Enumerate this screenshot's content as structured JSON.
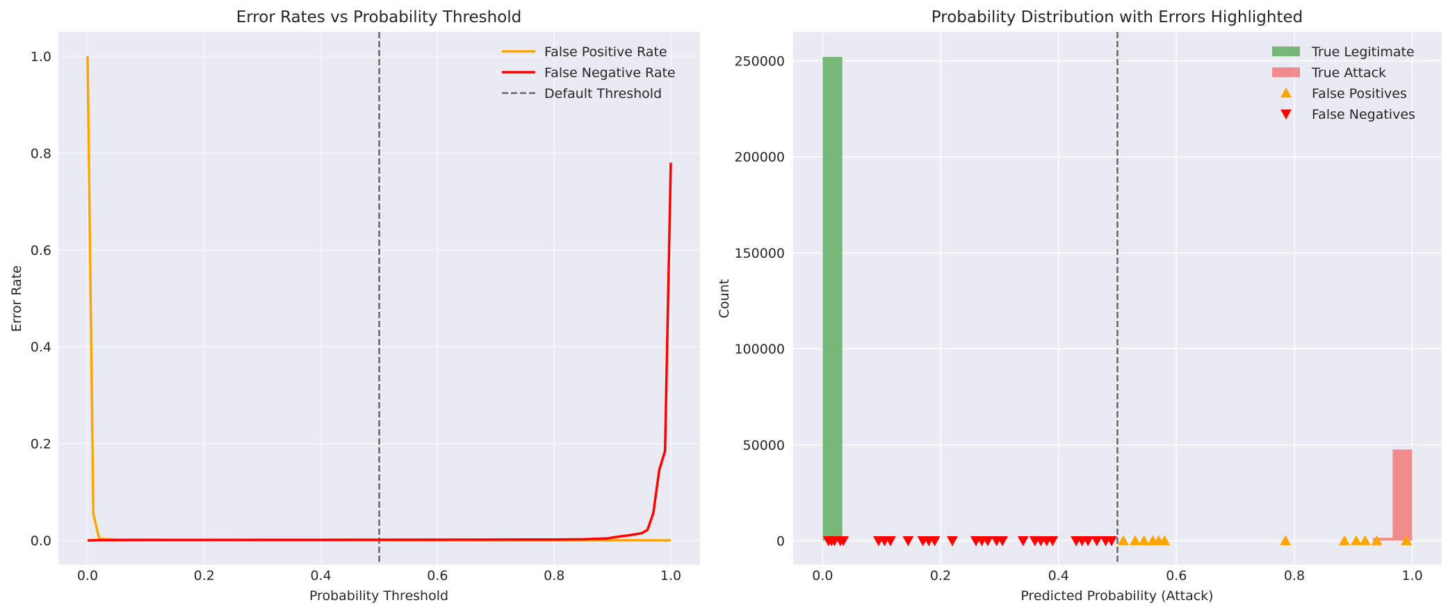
{
  "chart_data": [
    {
      "type": "line",
      "title": "Error Rates vs Probability Threshold",
      "xlabel": "Probability Threshold",
      "ylabel": "Error Rate",
      "xlim": [
        -0.05,
        1.05
      ],
      "ylim": [
        -0.05,
        1.05
      ],
      "xticks": [
        "0.0",
        "0.2",
        "0.4",
        "0.6",
        "0.8",
        "1.0"
      ],
      "yticks": [
        "0.0",
        "0.2",
        "0.4",
        "0.6",
        "0.8",
        "1.0"
      ],
      "grid": true,
      "legend_position": "top-right",
      "series": [
        {
          "name": "False Positive Rate",
          "color": "#FFA500",
          "points": [
            [
              0.0,
              1.0
            ],
            [
              0.01,
              0.055
            ],
            [
              0.02,
              0.004
            ],
            [
              0.03,
              0.003
            ],
            [
              0.05,
              0.002
            ],
            [
              0.1,
              0.0015
            ],
            [
              0.2,
              0.0012
            ],
            [
              0.3,
              0.001
            ],
            [
              0.4,
              0.001
            ],
            [
              0.5,
              0.0009
            ],
            [
              0.6,
              0.0008
            ],
            [
              0.7,
              0.0006
            ],
            [
              0.8,
              0.0005
            ],
            [
              0.9,
              0.0004
            ],
            [
              0.95,
              0.0003
            ],
            [
              1.0,
              0.0002
            ]
          ]
        },
        {
          "name": "False Negative Rate",
          "color": "#FF0000",
          "points": [
            [
              0.0,
              0.0
            ],
            [
              0.01,
              0.0005
            ],
            [
              0.05,
              0.0008
            ],
            [
              0.1,
              0.001
            ],
            [
              0.2,
              0.001
            ],
            [
              0.3,
              0.0012
            ],
            [
              0.4,
              0.0013
            ],
            [
              0.5,
              0.0015
            ],
            [
              0.6,
              0.0017
            ],
            [
              0.7,
              0.0018
            ],
            [
              0.8,
              0.002
            ],
            [
              0.85,
              0.0025
            ],
            [
              0.89,
              0.004
            ],
            [
              0.91,
              0.008
            ],
            [
              0.93,
              0.011
            ],
            [
              0.95,
              0.015
            ],
            [
              0.96,
              0.022
            ],
            [
              0.97,
              0.057
            ],
            [
              0.98,
              0.145
            ],
            [
              0.99,
              0.185
            ],
            [
              1.0,
              0.78
            ]
          ]
        }
      ],
      "reference_lines": [
        {
          "name": "Default Threshold",
          "x": 0.5,
          "color": "#666666",
          "style": "dashed"
        }
      ]
    },
    {
      "type": "bar",
      "title": "Probability Distribution with Errors Highlighted",
      "xlabel": "Predicted Probability (Attack)",
      "ylabel": "Count",
      "xlim": [
        -0.05,
        1.05
      ],
      "ylim": [
        -12500,
        265000
      ],
      "xticks": [
        "0.0",
        "0.2",
        "0.4",
        "0.6",
        "0.8",
        "1.0"
      ],
      "yticks": [
        "0",
        "50000",
        "100000",
        "150000",
        "200000",
        "250000"
      ],
      "grid": true,
      "legend_position": "top-right",
      "histograms": [
        {
          "name": "True Legitimate",
          "color": "#4CA64C",
          "bins": [
            [
              0.0,
              0.0333,
              252000
            ]
          ]
        },
        {
          "name": "True Attack",
          "color": "#F46B6B",
          "bins": [
            [
              0.9333,
              0.9667,
              1500
            ],
            [
              0.9667,
              1.0,
              47500
            ]
          ]
        }
      ],
      "scatter": [
        {
          "name": "False Positives",
          "color": "#FFA500",
          "marker": "triangle-up",
          "x": [
            0.51,
            0.53,
            0.545,
            0.56,
            0.57,
            0.58,
            0.785,
            0.885,
            0.905,
            0.92,
            0.94,
            0.99
          ],
          "y": [
            0,
            0,
            0,
            0,
            0,
            0,
            0,
            0,
            0,
            0,
            0,
            0
          ]
        },
        {
          "name": "False Negatives",
          "color": "#FF0000",
          "marker": "triangle-down",
          "x": [
            0.01,
            0.015,
            0.02,
            0.03,
            0.035,
            0.095,
            0.105,
            0.115,
            0.145,
            0.17,
            0.18,
            0.19,
            0.22,
            0.26,
            0.27,
            0.28,
            0.295,
            0.305,
            0.34,
            0.36,
            0.37,
            0.38,
            0.39,
            0.43,
            0.44,
            0.45,
            0.465,
            0.48,
            0.49
          ],
          "y": [
            0,
            0,
            0,
            0,
            0,
            0,
            0,
            0,
            0,
            0,
            0,
            0,
            0,
            0,
            0,
            0,
            0,
            0,
            0,
            0,
            0,
            0,
            0,
            0,
            0,
            0,
            0,
            0,
            0
          ]
        }
      ],
      "reference_lines": [
        {
          "x": 0.5,
          "color": "#666666",
          "style": "dashed"
        }
      ]
    }
  ]
}
